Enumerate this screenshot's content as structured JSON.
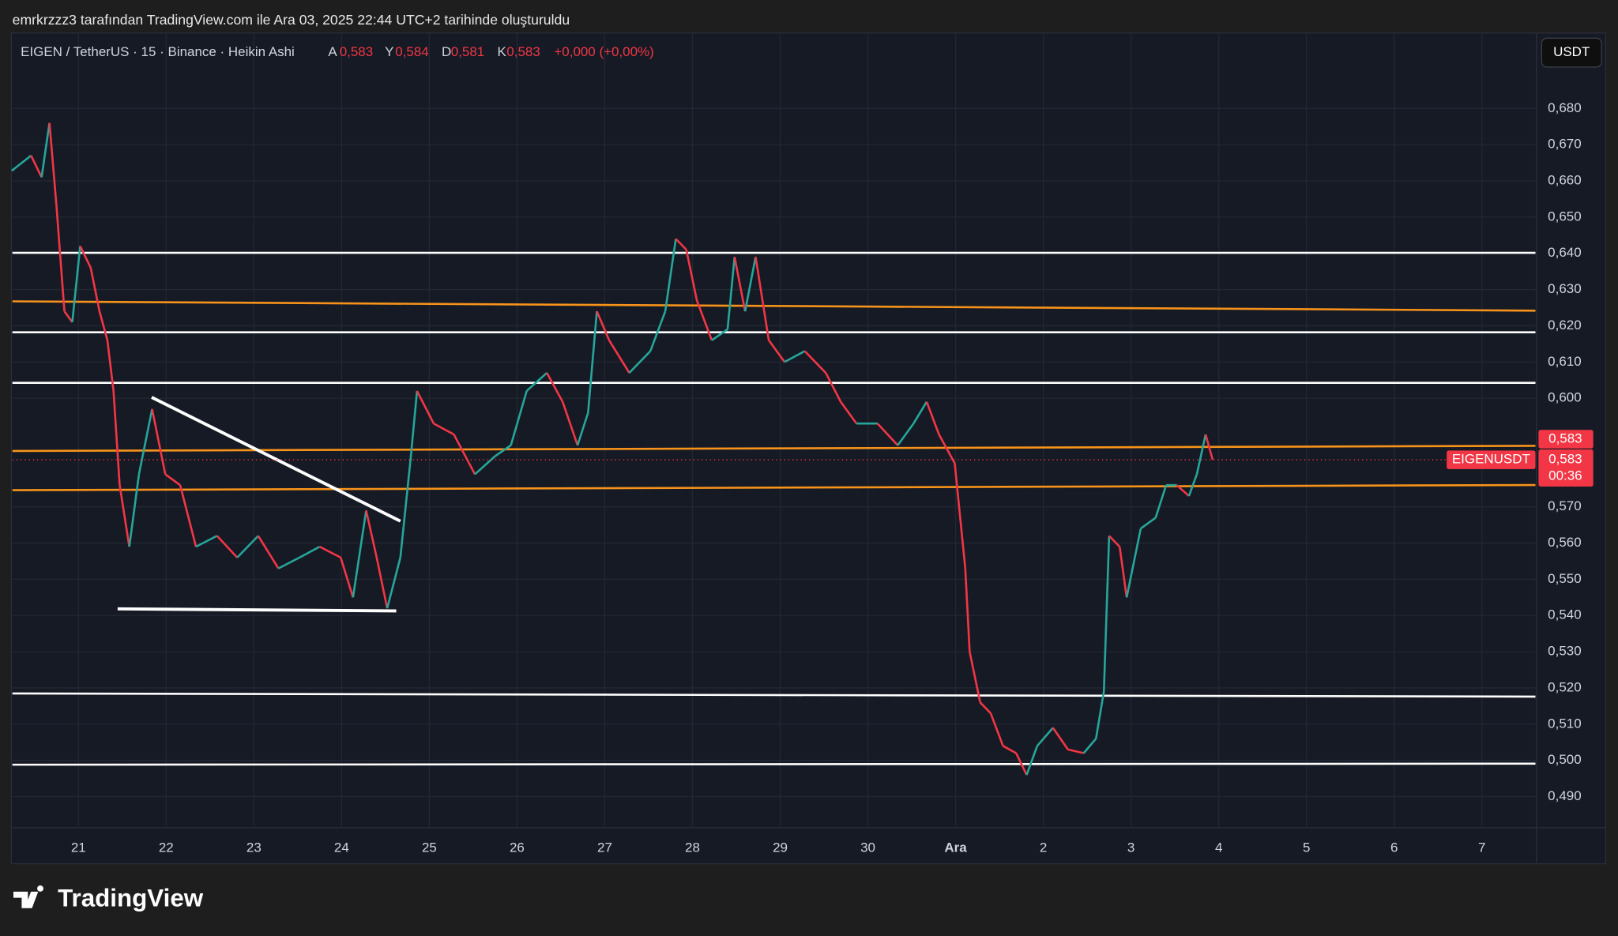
{
  "header": {
    "attribution": "emrkrzzz3 tarafından TradingView.com ile Ara 03, 2025 22:44 UTC+2 tarihinde oluşturuldu"
  },
  "chart_data": {
    "type": "line",
    "title": "EIGEN / TetherUS · 15 · Binance · Heikin Ashi",
    "ohlc": [
      {
        "key": "A",
        "value": "0,583"
      },
      {
        "key": "Y",
        "value": "0,584"
      },
      {
        "key": "D",
        "value": "0,581"
      },
      {
        "key": "K",
        "value": "0,583"
      }
    ],
    "change": "+0,000 (+0,00%)",
    "currency": "USDT",
    "symbol": "EIGENUSDT",
    "countdown": "00:36",
    "last_price": {
      "value": 0.583,
      "label": "0,583"
    },
    "up_color": "#26a69a",
    "down_color": "#f23645",
    "x": [
      -0.75,
      -0.54,
      -0.42,
      -0.33,
      -0.25,
      -0.16,
      -0.07,
      0.02,
      0.14,
      0.24,
      0.33,
      0.4,
      0.47,
      0.58,
      0.69,
      0.84,
      0.99,
      1.16,
      1.34,
      1.58,
      1.81,
      2.05,
      2.28,
      2.52,
      2.75,
      2.99,
      3.13,
      3.28,
      3.4,
      3.52,
      3.67,
      3.79,
      3.86,
      4.05,
      4.28,
      4.52,
      4.75,
      4.93,
      5.11,
      5.34,
      5.52,
      5.69,
      5.81,
      5.91,
      6.05,
      6.28,
      6.52,
      6.69,
      6.81,
      6.93,
      7.05,
      7.22,
      7.4,
      7.48,
      7.6,
      7.72,
      7.87,
      8.05,
      8.28,
      8.52,
      8.69,
      8.87,
      9.11,
      9.34,
      9.52,
      9.67,
      9.81,
      9.99,
      10.11,
      10.16,
      10.28,
      10.4,
      10.54,
      10.69,
      10.81,
      10.93,
      11.11,
      11.28,
      11.46,
      11.6,
      11.69,
      11.75,
      11.87,
      11.95,
      12.11,
      12.28,
      12.4,
      12.52,
      12.66,
      12.75,
      12.85,
      12.93
    ],
    "values": [
      0.663,
      0.667,
      0.661,
      0.676,
      0.653,
      0.624,
      0.621,
      0.642,
      0.636,
      0.624,
      0.616,
      0.602,
      0.576,
      0.559,
      0.579,
      0.597,
      0.579,
      0.576,
      0.559,
      0.562,
      0.556,
      0.562,
      0.553,
      0.556,
      0.559,
      0.556,
      0.545,
      0.569,
      0.556,
      0.542,
      0.556,
      0.584,
      0.602,
      0.593,
      0.59,
      0.579,
      0.584,
      0.587,
      0.602,
      0.607,
      0.599,
      0.587,
      0.596,
      0.624,
      0.616,
      0.607,
      0.613,
      0.624,
      0.644,
      0.641,
      0.627,
      0.616,
      0.619,
      0.639,
      0.624,
      0.639,
      0.616,
      0.61,
      0.613,
      0.607,
      0.599,
      0.593,
      0.593,
      0.587,
      0.593,
      0.599,
      0.59,
      0.582,
      0.553,
      0.53,
      0.516,
      0.513,
      0.504,
      0.502,
      0.496,
      0.504,
      0.509,
      0.503,
      0.502,
      0.506,
      0.519,
      0.562,
      0.559,
      0.545,
      0.564,
      0.567,
      0.576,
      0.576,
      0.573,
      0.579,
      0.59,
      0.583
    ],
    "xlim": [
      -0.753,
      16.61
    ],
    "xticks": [
      {
        "value": 0,
        "label": "21"
      },
      {
        "value": 1,
        "label": "22"
      },
      {
        "value": 2,
        "label": "23"
      },
      {
        "value": 3,
        "label": "24"
      },
      {
        "value": 4,
        "label": "25"
      },
      {
        "value": 5,
        "label": "26"
      },
      {
        "value": 6,
        "label": "27"
      },
      {
        "value": 7,
        "label": "28"
      },
      {
        "value": 8,
        "label": "29"
      },
      {
        "value": 9,
        "label": "30"
      },
      {
        "value": 10,
        "label": "Ara"
      },
      {
        "value": 11,
        "label": "2"
      },
      {
        "value": 12,
        "label": "3"
      },
      {
        "value": 13,
        "label": "4"
      },
      {
        "value": 14,
        "label": "5"
      },
      {
        "value": 15,
        "label": "6"
      },
      {
        "value": 16,
        "label": "7"
      }
    ],
    "ylim": [
      0.482,
      0.69
    ],
    "yticks": [
      {
        "value": 0.49,
        "label": "0,490"
      },
      {
        "value": 0.5,
        "label": "0,500"
      },
      {
        "value": 0.51,
        "label": "0,510"
      },
      {
        "value": 0.52,
        "label": "0,520"
      },
      {
        "value": 0.53,
        "label": "0,530"
      },
      {
        "value": 0.54,
        "label": "0,540"
      },
      {
        "value": 0.55,
        "label": "0,550"
      },
      {
        "value": 0.56,
        "label": "0,560"
      },
      {
        "value": 0.57,
        "label": "0,570"
      },
      {
        "value": 0.6,
        "label": "0,600"
      },
      {
        "value": 0.61,
        "label": "0,610"
      },
      {
        "value": 0.62,
        "label": "0,620"
      },
      {
        "value": 0.63,
        "label": "0,630"
      },
      {
        "value": 0.64,
        "label": "0,640"
      },
      {
        "value": 0.65,
        "label": "0,650"
      },
      {
        "value": 0.66,
        "label": "0,660"
      },
      {
        "value": 0.67,
        "label": "0,670"
      },
      {
        "value": 0.68,
        "label": "0,680"
      }
    ],
    "grid": true
  },
  "footer": {
    "brand": "TradingView"
  }
}
